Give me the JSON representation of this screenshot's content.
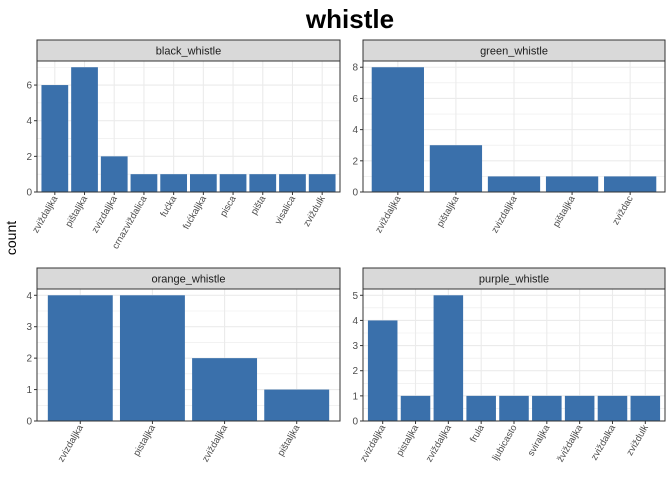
{
  "title": "whistle",
  "ylabel": "count",
  "colors": {
    "bar": "#3a70ab",
    "strip": "#d9d9d9",
    "strip_border": "#333333",
    "grid": "#ebebeb",
    "axis_text": "#4d4d4d"
  },
  "chart_data": [
    {
      "type": "bar",
      "title": "black_whistle",
      "categories": [
        "zviždaljka",
        "pištaljka",
        "zvizdaljka",
        "crnazviždalica",
        "fućka",
        "fućkaljka",
        "pisca",
        "pišta",
        "visalica",
        "zviždulk"
      ],
      "values": [
        6,
        7,
        2,
        1,
        1,
        1,
        1,
        1,
        1,
        1
      ],
      "ylim": [
        0,
        7.35
      ],
      "yticks": [
        0,
        2,
        4,
        6
      ],
      "grid": true
    },
    {
      "type": "bar",
      "title": "green_whistle",
      "categories": [
        "zviždaljka",
        "pištaljka",
        "zvizdaljka",
        "pištaljka",
        "zviždac"
      ],
      "values": [
        8,
        3,
        1,
        1,
        1
      ],
      "ylim": [
        0,
        8.4
      ],
      "yticks": [
        0,
        2,
        4,
        6,
        8
      ],
      "grid": true
    },
    {
      "type": "bar",
      "title": "orange_whistle",
      "categories": [
        "zvizdaljka",
        "pistaljka",
        "zviždaljka",
        "pištaljka"
      ],
      "values": [
        4,
        4,
        2,
        1
      ],
      "ylim": [
        0,
        4.2
      ],
      "yticks": [
        0,
        1,
        2,
        3,
        4
      ],
      "grid": true
    },
    {
      "type": "bar",
      "title": "purple_whistle",
      "categories": [
        "zvizdaljka",
        "pistaljka",
        "zviždaljka",
        "frula",
        "ljubicasto",
        "sviraljka",
        "žviždaljka",
        "zviždalka",
        "zviždulk"
      ],
      "values": [
        4,
        1,
        5,
        1,
        1,
        1,
        1,
        1,
        1
      ],
      "ylim": [
        0,
        5.25
      ],
      "yticks": [
        0,
        1,
        2,
        3,
        4,
        5
      ],
      "grid": true
    }
  ]
}
